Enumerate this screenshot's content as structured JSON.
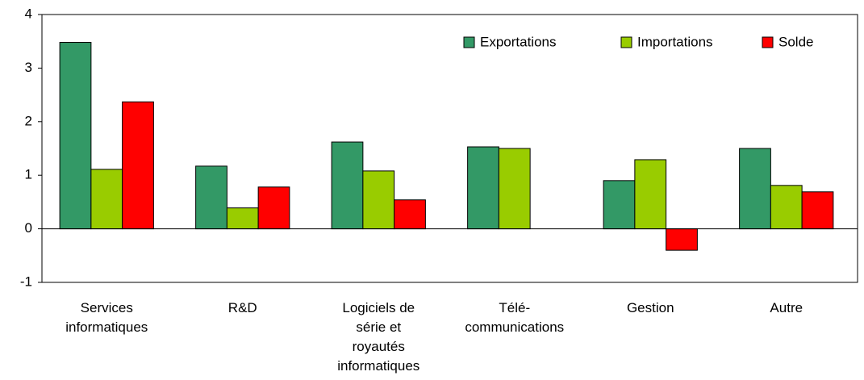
{
  "chart_data": {
    "type": "bar",
    "categories": [
      "Services\ninformatiques",
      "R&D",
      "Logiciels de\nsérie et\nroyautés\ninformatiques",
      "Télé-\ncommunications",
      "Gestion",
      "Autre"
    ],
    "series": [
      {
        "name": "Exportations",
        "color": "#339966",
        "values": [
          3.48,
          1.17,
          1.62,
          1.53,
          0.9,
          1.5
        ]
      },
      {
        "name": "Importations",
        "color": "#99cc00",
        "values": [
          1.11,
          0.39,
          1.08,
          1.5,
          1.29,
          0.81
        ]
      },
      {
        "name": "Solde",
        "color": "#ff0000",
        "values": [
          2.37,
          0.78,
          0.54,
          0,
          -0.4,
          0.69
        ]
      }
    ],
    "ylim": [
      -1,
      4
    ],
    "yticks": [
      -1,
      0,
      1,
      2,
      3,
      4
    ],
    "legend": "top-right"
  }
}
